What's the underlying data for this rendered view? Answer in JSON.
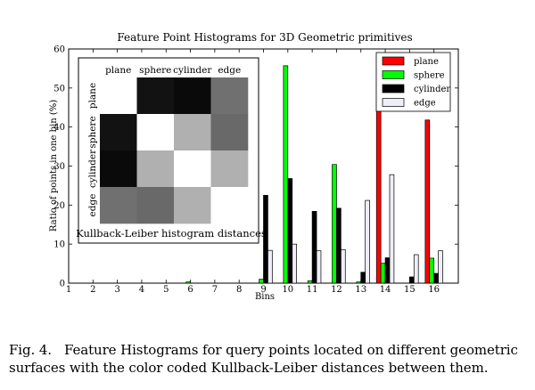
{
  "chart_data": {
    "type": "bar",
    "title": "Feature Point Histograms for 3D Geometric primitives",
    "xlabel": "Bins",
    "ylabel": "Ratio of points in one bin (%)",
    "xlim": [
      1,
      17
    ],
    "ylim": [
      0,
      60
    ],
    "x_ticks": [
      "1",
      "2",
      "3",
      "4",
      "5",
      "6",
      "7",
      "8",
      "9",
      "10",
      "11",
      "12",
      "13",
      "14",
      "15",
      "16"
    ],
    "y_ticks": [
      "0",
      "10",
      "20",
      "30",
      "40",
      "50",
      "60"
    ],
    "categories": [
      1,
      2,
      3,
      4,
      5,
      6,
      7,
      8,
      9,
      10,
      11,
      12,
      13,
      14,
      15,
      16
    ],
    "series": [
      {
        "name": "plane",
        "color": "#ff0000",
        "values": [
          0,
          0,
          0,
          0,
          0,
          0,
          0,
          0,
          0,
          0,
          0,
          0,
          0,
          58.2,
          0,
          41.8
        ]
      },
      {
        "name": "sphere",
        "color": "#00ff00",
        "values": [
          0,
          0,
          0,
          0,
          0,
          0.3,
          0,
          0,
          1.0,
          55.7,
          0.6,
          30.4,
          0.3,
          5.1,
          0,
          6.4
        ]
      },
      {
        "name": "cylinder",
        "color": "#000000",
        "values": [
          0,
          0,
          0,
          0,
          0,
          0,
          0,
          0,
          22.5,
          26.8,
          18.4,
          19.2,
          2.8,
          6.5,
          1.6,
          2.5
        ]
      },
      {
        "name": "edge",
        "color": "#eeeef8",
        "values": [
          0,
          0,
          0,
          0,
          0,
          0,
          0,
          0,
          8.4,
          10.0,
          8.3,
          8.6,
          21.2,
          27.8,
          7.3,
          8.3
        ]
      }
    ],
    "legend": {
      "position": "top-right"
    },
    "grid": false,
    "inset_heatmap": {
      "type": "heatmap",
      "caption": "Kullback-Leiber histogram distances",
      "column_labels": [
        "plane",
        "sphere",
        "cylinder",
        "edge"
      ],
      "row_labels": [
        "plane",
        "sphere",
        "cylinder",
        "edge"
      ],
      "gray_levels": [
        [
          1.0,
          0.07,
          0.04,
          0.44
        ],
        [
          0.07,
          1.0,
          0.69,
          0.41
        ],
        [
          0.04,
          0.69,
          1.0,
          0.69
        ],
        [
          0.44,
          0.41,
          0.69,
          1.0
        ]
      ]
    }
  },
  "caption": {
    "label": "Fig. 4.",
    "text": "Feature Histograms for query points located on different geometric surfaces with the color coded Kullback-Leiber distances between them."
  }
}
